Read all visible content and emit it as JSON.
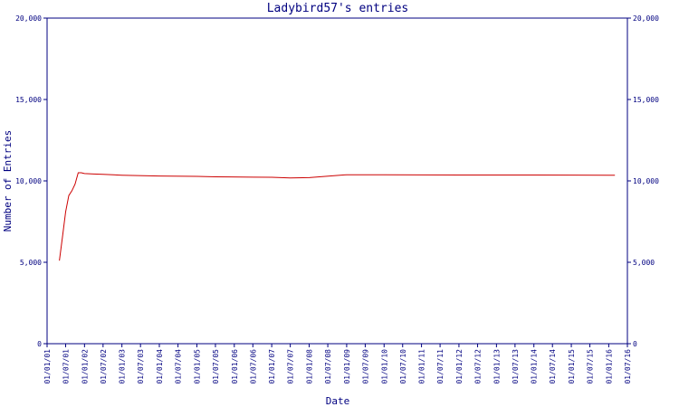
{
  "chart_data": {
    "type": "line",
    "title": "Ladybird57's entries",
    "xlabel": "Date",
    "ylabel": "Number of Entries",
    "ylim": [
      0,
      20000
    ],
    "y_ticks": [
      "0",
      "5,000",
      "10,000",
      "15,000",
      "20,000"
    ],
    "y_tick_values": [
      0,
      5000,
      10000,
      15000,
      20000
    ],
    "x_ticks": [
      "01/01/01",
      "01/07/01",
      "01/01/02",
      "01/07/02",
      "01/01/03",
      "01/07/03",
      "01/01/04",
      "01/07/04",
      "01/01/05",
      "01/07/05",
      "01/01/06",
      "01/07/06",
      "01/01/07",
      "01/07/07",
      "01/01/08",
      "01/07/08",
      "01/01/09",
      "01/07/09",
      "01/01/10",
      "01/07/10",
      "01/01/11",
      "01/07/11",
      "01/01/12",
      "01/07/12",
      "01/01/13",
      "01/07/13",
      "01/01/14",
      "01/07/14",
      "01/01/15",
      "01/07/15",
      "01/01/16",
      "01/07/16"
    ],
    "grid": false,
    "line_color": "#cc0000",
    "axis_color": "#000080",
    "series": [
      {
        "x": [
          "2001-05-01",
          "2001-06-01",
          "2001-07-01",
          "2001-08-01",
          "2001-09-01",
          "2001-10-01",
          "2001-11-01",
          "2001-12-01",
          "2002-01-01",
          "2002-04-01",
          "2002-07-01",
          "2003-01-01",
          "2004-01-01",
          "2005-01-01",
          "2005-07-01",
          "2006-07-01",
          "2007-01-01",
          "2007-07-01",
          "2008-01-01",
          "2009-01-01",
          "2010-01-01",
          "2012-01-01",
          "2014-01-01",
          "2016-01-01",
          "2016-03-01"
        ],
        "y": [
          5100,
          6600,
          8100,
          9100,
          9400,
          9800,
          10500,
          10500,
          10450,
          10420,
          10400,
          10350,
          10300,
          10280,
          10250,
          10230,
          10220,
          10180,
          10200,
          10380,
          10370,
          10360,
          10360,
          10350,
          10350
        ]
      }
    ]
  }
}
